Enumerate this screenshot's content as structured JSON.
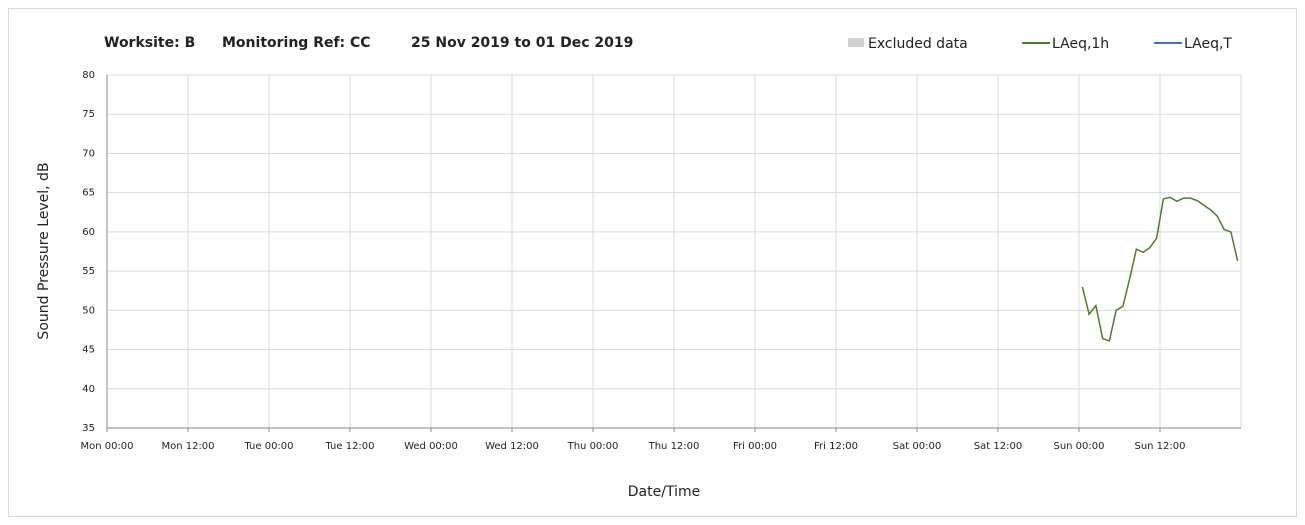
{
  "chart_data": {
    "type": "line",
    "title": [
      "Worksite: B",
      "Monitoring Ref: CC",
      "25 Nov 2019 to 01 Dec 2019"
    ],
    "x_label": "Date/Time",
    "y_label": "Sound Pressure Level, dB",
    "excluded": {
      "name": "Excluded data",
      "color": "#d0d0d0"
    },
    "x": [
      144.5,
      145.5,
      146.5,
      147.5,
      148.5,
      149.5,
      150.5,
      151.5,
      152.5,
      153.5,
      154.5,
      155.5,
      156.5,
      157.5,
      158.5,
      159.5,
      160.5,
      161.5,
      162.5,
      163.5,
      164.5,
      165.5,
      166.5,
      167.5
    ],
    "series": [
      {
        "name": "LAeq,1h",
        "color": "#4e7a2e",
        "values": [
          53,
          49.5,
          50.6,
          46.4,
          46.1,
          50,
          50.5,
          54,
          57.8,
          57.4,
          58,
          59.2,
          64.2,
          64.4,
          63.9,
          64.3,
          64.3,
          64,
          63.4,
          62.8,
          62,
          60.3,
          60,
          56.3
        ]
      },
      {
        "name": "LAeq,T",
        "color": "#4472c4",
        "values": [
          null,
          null,
          null,
          null,
          null,
          null,
          null,
          null,
          null,
          null,
          null,
          null,
          null,
          null,
          null,
          null,
          null,
          null,
          null,
          null,
          null,
          null,
          null,
          null
        ]
      }
    ],
    "xlim": [
      0,
      168
    ],
    "xticks": [
      {
        "value": 0,
        "label": "Mon 00:00"
      },
      {
        "value": 12,
        "label": "Mon 12:00"
      },
      {
        "value": 24,
        "label": "Tue 00:00"
      },
      {
        "value": 36,
        "label": "Tue 12:00"
      },
      {
        "value": 48,
        "label": "Wed 00:00"
      },
      {
        "value": 60,
        "label": "Wed 12:00"
      },
      {
        "value": 72,
        "label": "Thu 00:00"
      },
      {
        "value": 84,
        "label": "Thu 12:00"
      },
      {
        "value": 96,
        "label": "Fri 00:00"
      },
      {
        "value": 108,
        "label": "Fri 12:00"
      },
      {
        "value": 120,
        "label": "Sat 00:00"
      },
      {
        "value": 132,
        "label": "Sat 12:00"
      },
      {
        "value": 144,
        "label": "Sun 00:00"
      },
      {
        "value": 156,
        "label": "Sun 12:00"
      }
    ],
    "ylim": [
      35,
      80
    ],
    "yticks": [
      35,
      40,
      45,
      50,
      55,
      60,
      65,
      70,
      75,
      80
    ],
    "grid": true
  }
}
